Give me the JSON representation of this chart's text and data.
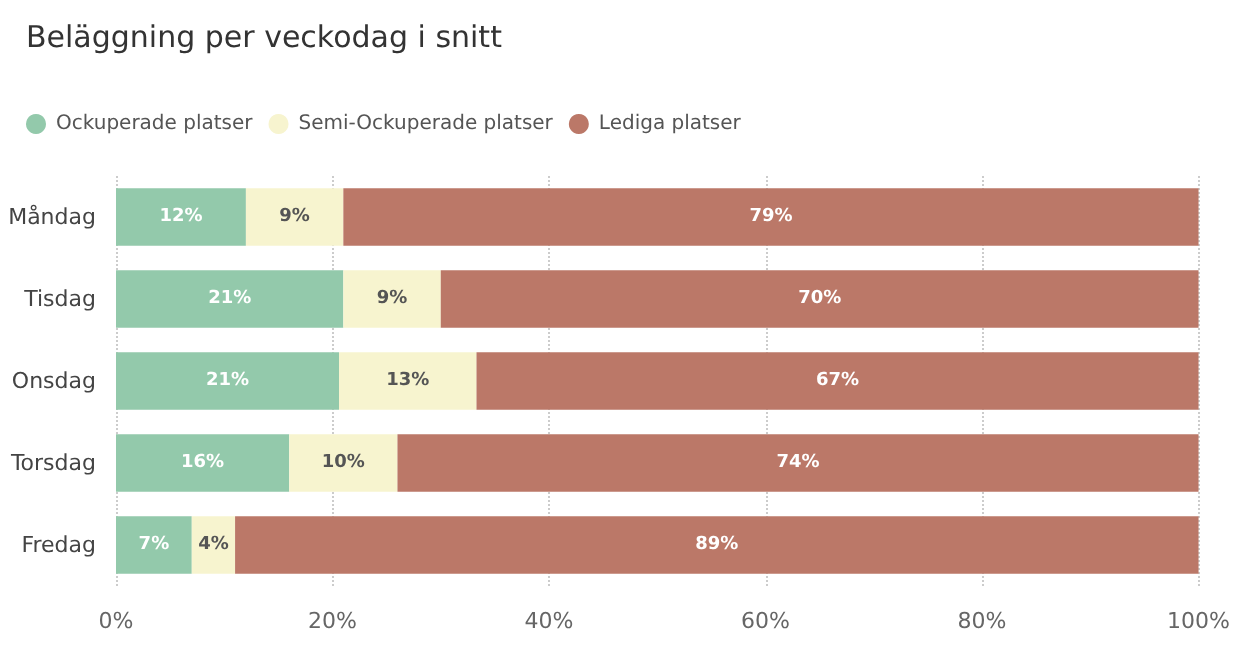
{
  "chart_data": {
    "type": "bar",
    "title": "Beläggning per veckodag i snitt",
    "orientation": "horizontal",
    "stacked": true,
    "categories": [
      "Måndag",
      "Tisdag",
      "Onsdag",
      "Torsdag",
      "Fredag"
    ],
    "series": [
      {
        "name": "Ockuperade platser",
        "color": "#93c9ab",
        "values": [
          12,
          21,
          20.6,
          16,
          7
        ],
        "value_labels": [
          "12%",
          "21%",
          "21%",
          "16%",
          "7%"
        ]
      },
      {
        "name": "Semi-Ockuperade platser",
        "color": "#f7f4cf",
        "values": [
          9,
          9,
          12.7,
          10,
          4
        ],
        "value_labels": [
          "9%",
          "9%",
          "13%",
          "10%",
          "4%"
        ]
      },
      {
        "name": "Lediga platser",
        "color": "#bb7868",
        "values": [
          79,
          70,
          66.7,
          74,
          89
        ],
        "value_labels": [
          "79%",
          "70%",
          "67%",
          "74%",
          "89%"
        ]
      }
    ],
    "xlim": [
      0,
      100
    ],
    "xticks": [
      {
        "value": 0,
        "label": "0%"
      },
      {
        "value": 20,
        "label": "20%"
      },
      {
        "value": 40,
        "label": "40%"
      },
      {
        "value": 60,
        "label": "60%"
      },
      {
        "value": 80,
        "label": "80%"
      },
      {
        "value": 100,
        "label": "100%"
      }
    ],
    "grid": "x",
    "legend": "top left"
  }
}
